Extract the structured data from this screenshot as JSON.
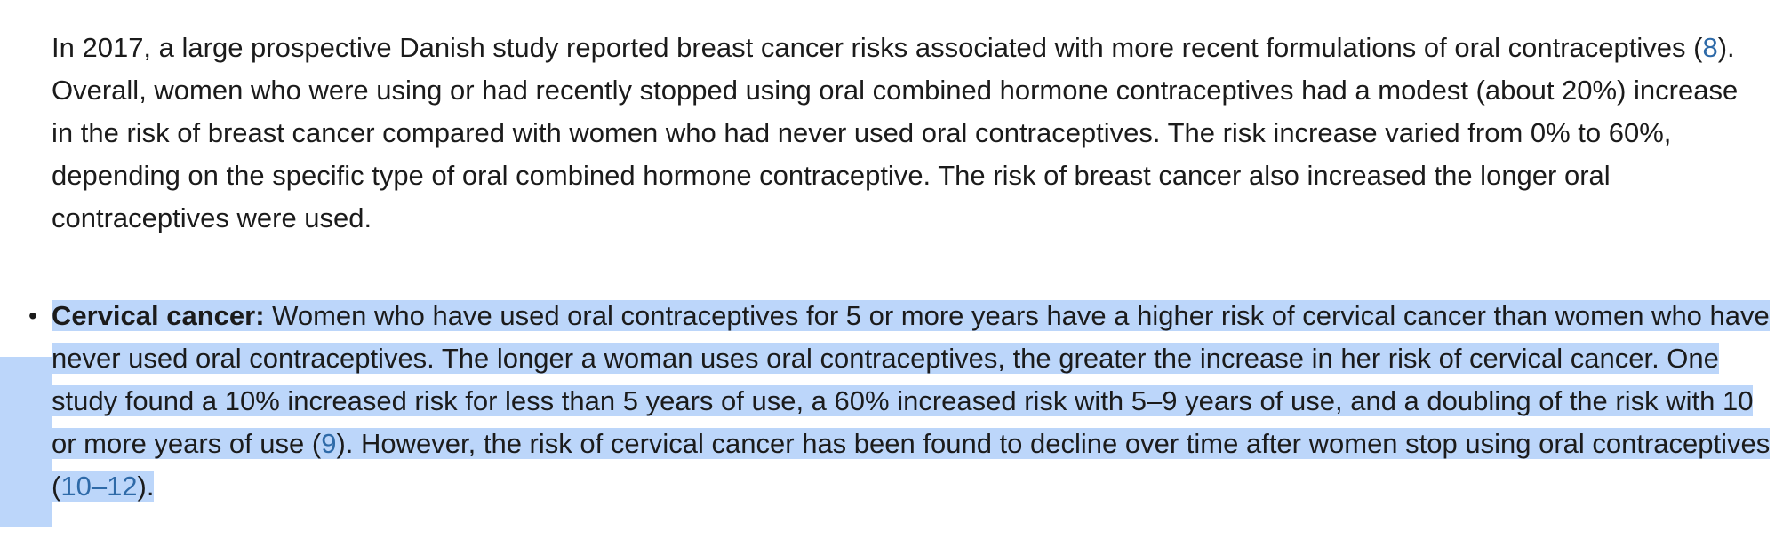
{
  "paragraph": {
    "t1": "In 2017, a large prospective Danish study reported breast cancer risks associated with more recent formulations of oral contraceptives (",
    "ref1": "8",
    "t2": "). Overall, women who were using or had recently stopped using oral combined hormone contraceptives had a modest (about 20%) increase in the risk of breast cancer compared with women who had never used oral contraceptives. The risk increase varied from 0% to 60%, depending on the specific type of oral combined hormone contraceptive. The risk of breast cancer also increased the longer oral contraceptives were used."
  },
  "bullet": {
    "marker": "•",
    "heading": "Cervical cancer:",
    "t1": " Women who have used oral contraceptives for 5 or more years have a higher risk of cervical cancer than women who have never used oral contraceptives. The longer a woman uses oral contraceptives, the greater the increase in her risk of cervical cancer. One study found a 10% increased risk for less than 5 years of use, a 60% increased risk with 5–9 years of use, and a doubling of the risk with 10 or more years of use (",
    "ref1": "9",
    "t2": "). However, the risk of cervical cancer has been found to decline over time after women stop using oral contraceptives (",
    "ref2": "10",
    "dash": "–",
    "ref3": "12",
    "t3": ")."
  },
  "colors": {
    "text": "#1b1b1b",
    "link": "#2e6aa8",
    "selection": "#bcd6fa"
  }
}
